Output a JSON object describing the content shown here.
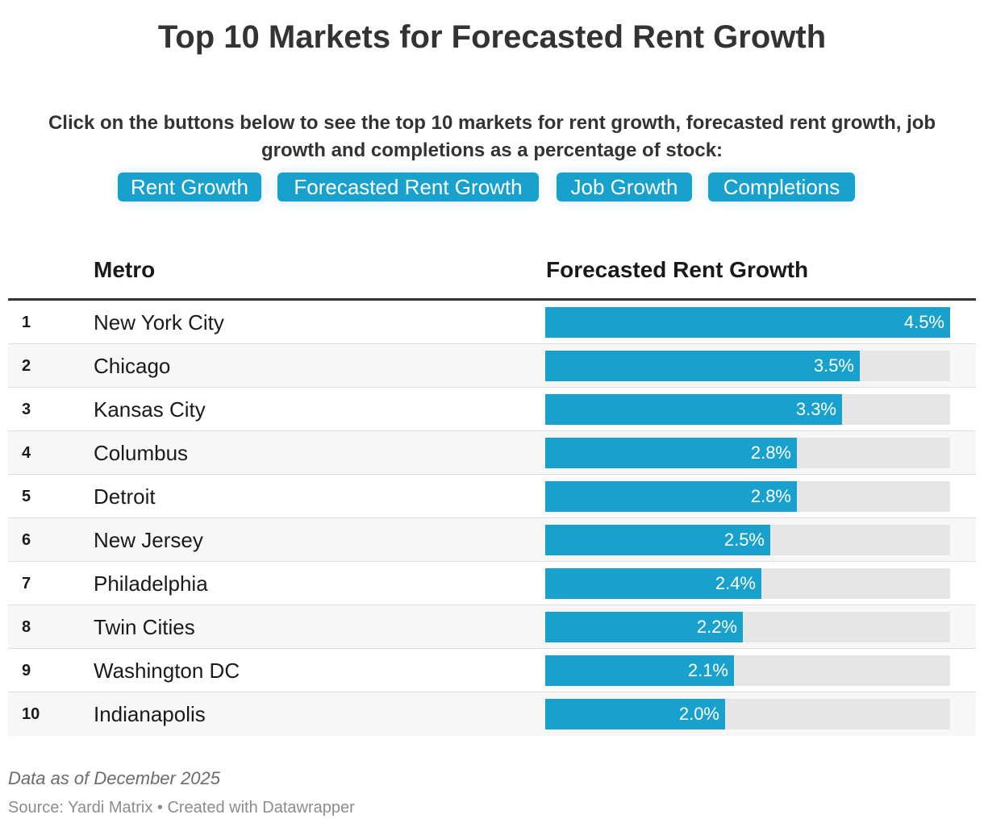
{
  "title": "Top 10 Markets for Forecasted Rent Growth",
  "description": "Click on the buttons below to see the top 10 markets for rent growth, forecasted rent growth, job growth and completions as a percentage of stock:",
  "buttons": {
    "rent_growth": "Rent Growth",
    "forecasted_rent_growth": "Forecasted Rent Growth",
    "job_growth": "Job Growth",
    "completions": "Completions"
  },
  "colors": {
    "bar": "#18a1cd",
    "track": "#e6e6e6",
    "button": "#18a1cd"
  },
  "table": {
    "headers": {
      "metro": "Metro",
      "value": "Forecasted Rent Growth"
    }
  },
  "chart_data": {
    "type": "bar",
    "orientation": "horizontal",
    "title": "Top 10 Markets for Forecasted Rent Growth",
    "xlim": [
      0,
      4.5
    ],
    "categories": [
      "New York City",
      "Chicago",
      "Kansas City",
      "Columbus",
      "Detroit",
      "New Jersey",
      "Philadelphia",
      "Twin Cities",
      "Washington DC",
      "Indianapolis"
    ],
    "ranks": [
      "1",
      "2",
      "3",
      "4",
      "5",
      "6",
      "7",
      "8",
      "9",
      "10"
    ],
    "values": [
      4.5,
      3.5,
      3.3,
      2.8,
      2.8,
      2.5,
      2.4,
      2.2,
      2.1,
      2.0
    ],
    "labels": [
      "4.5%",
      "3.5%",
      "3.3%",
      "2.8%",
      "2.8%",
      "2.5%",
      "2.4%",
      "2.2%",
      "2.1%",
      "2.0%"
    ]
  },
  "footer": {
    "notes": "Data as of December 2025",
    "source": "Source: Yardi Matrix • Created with Datawrapper"
  }
}
